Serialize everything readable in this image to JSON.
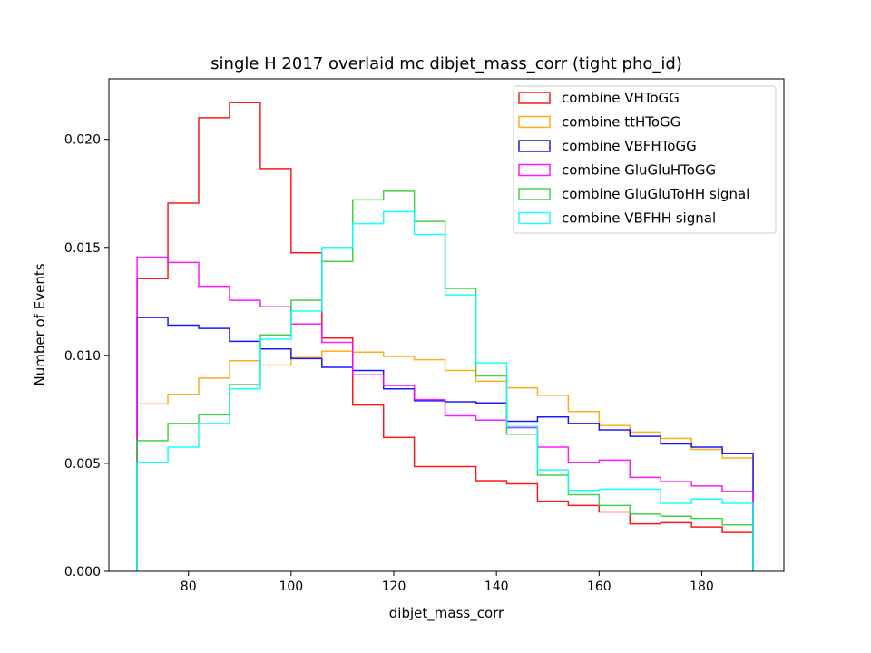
{
  "chart_data": {
    "type": "step-histogram",
    "title": "single H 2017 overlaid mc dibjet_mass_corr (tight pho_id)",
    "xlabel": "dibjet_mass_corr",
    "ylabel": "Number of Events",
    "xlim": [
      64.5,
      196
    ],
    "ylim": [
      0,
      0.0228
    ],
    "xticks": [
      80,
      100,
      120,
      140,
      160,
      180
    ],
    "xtick_labels": [
      "80",
      "100",
      "120",
      "140",
      "160",
      "180"
    ],
    "yticks": [
      0,
      0.005,
      0.01,
      0.015,
      0.02
    ],
    "ytick_labels": [
      "0.000",
      "0.005",
      "0.010",
      "0.015",
      "0.020"
    ],
    "grid": false,
    "legend_position": "top-right",
    "bin_edges": [
      70,
      76,
      82,
      88,
      94,
      100,
      106,
      112,
      118,
      124,
      130,
      136,
      142,
      148,
      154,
      160,
      166,
      172,
      178,
      184,
      190
    ],
    "series": [
      {
        "name": "combine VHToGG",
        "color": "#ff0000",
        "values": [
          0.01355,
          0.01705,
          0.021,
          0.0217,
          0.01865,
          0.01475,
          0.0108,
          0.0077,
          0.0062,
          0.00485,
          0.00485,
          0.0042,
          0.00405,
          0.00325,
          0.00305,
          0.00275,
          0.0022,
          0.00225,
          0.00205,
          0.0018
        ]
      },
      {
        "name": "combine ttHToGG",
        "color": "#ffa500",
        "values": [
          0.00775,
          0.0082,
          0.00895,
          0.00975,
          0.00955,
          0.0099,
          0.0102,
          0.01015,
          0.00995,
          0.0098,
          0.0093,
          0.0088,
          0.0085,
          0.00815,
          0.0074,
          0.00675,
          0.00645,
          0.00615,
          0.00565,
          0.00525
        ]
      },
      {
        "name": "combine VBFHToGG",
        "color": "#0000ff",
        "values": [
          0.01175,
          0.0114,
          0.01125,
          0.01065,
          0.0103,
          0.00985,
          0.00945,
          0.0093,
          0.00845,
          0.0079,
          0.00785,
          0.0078,
          0.00695,
          0.00715,
          0.00685,
          0.00655,
          0.00625,
          0.0059,
          0.00575,
          0.00545
        ]
      },
      {
        "name": "combine GluGluHToGG",
        "color": "#ff00ff",
        "values": [
          0.01455,
          0.0143,
          0.0132,
          0.01255,
          0.01225,
          0.01145,
          0.0106,
          0.0091,
          0.0086,
          0.00795,
          0.0072,
          0.007,
          0.00665,
          0.00575,
          0.00505,
          0.00515,
          0.00435,
          0.00415,
          0.00395,
          0.0037
        ]
      },
      {
        "name": "combine GluGluToHH signal",
        "color": "#32cd32",
        "values": [
          0.00605,
          0.00685,
          0.00725,
          0.00865,
          0.01095,
          0.01255,
          0.01435,
          0.0172,
          0.0176,
          0.0162,
          0.0131,
          0.00905,
          0.00635,
          0.00445,
          0.00355,
          0.00305,
          0.00265,
          0.00255,
          0.00245,
          0.00215
        ]
      },
      {
        "name": "combine VBFHH signal",
        "color": "#00ffff",
        "values": [
          0.00505,
          0.00575,
          0.00685,
          0.00845,
          0.01075,
          0.01205,
          0.015,
          0.0161,
          0.01665,
          0.0156,
          0.0128,
          0.00965,
          0.0067,
          0.0047,
          0.00375,
          0.0038,
          0.0038,
          0.00315,
          0.00335,
          0.00315
        ]
      }
    ]
  }
}
